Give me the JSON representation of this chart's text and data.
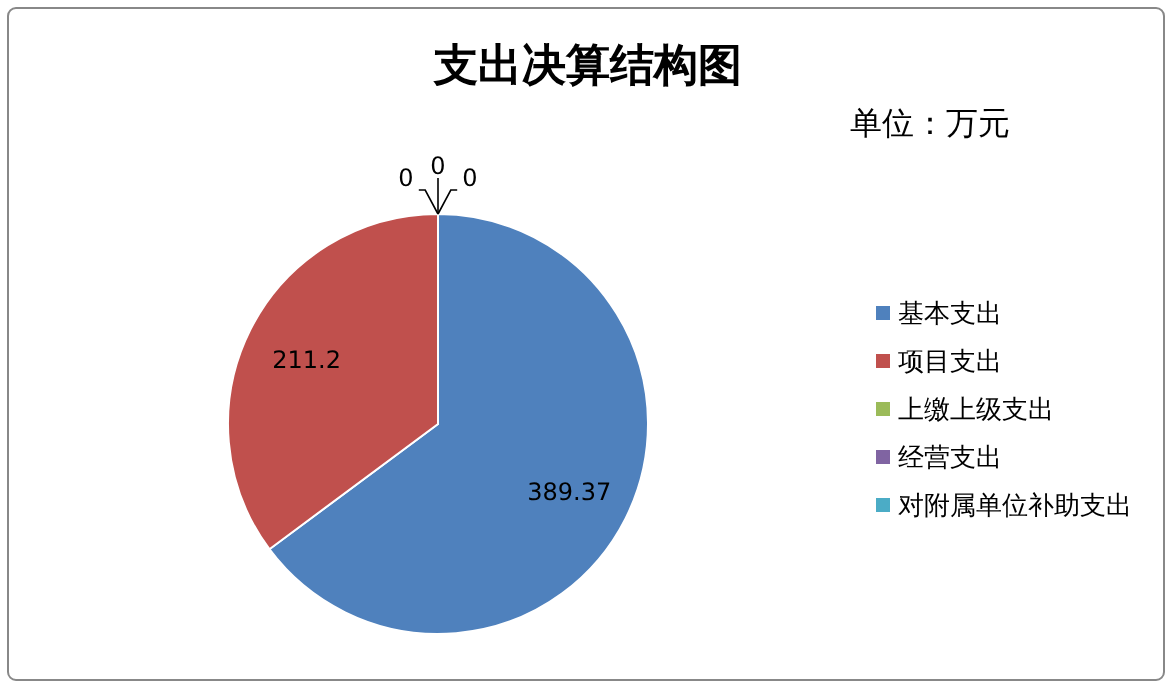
{
  "chart_data": {
    "type": "pie",
    "title": "支出决算结构图",
    "annotations": [
      "单位：万元"
    ],
    "categories": [
      "基本支出",
      "项目支出",
      "上缴上级支出",
      "经营支出",
      "对附属单位补助支出"
    ],
    "values": [
      389.37,
      211.2,
      0,
      0,
      0
    ],
    "colors": [
      "#4f81bd",
      "#c0504d",
      "#9bbb59",
      "#8064a2",
      "#4bacc6"
    ],
    "value_labels": [
      "389.37",
      "211.2",
      "0",
      "0",
      "0"
    ],
    "legend": "right"
  }
}
